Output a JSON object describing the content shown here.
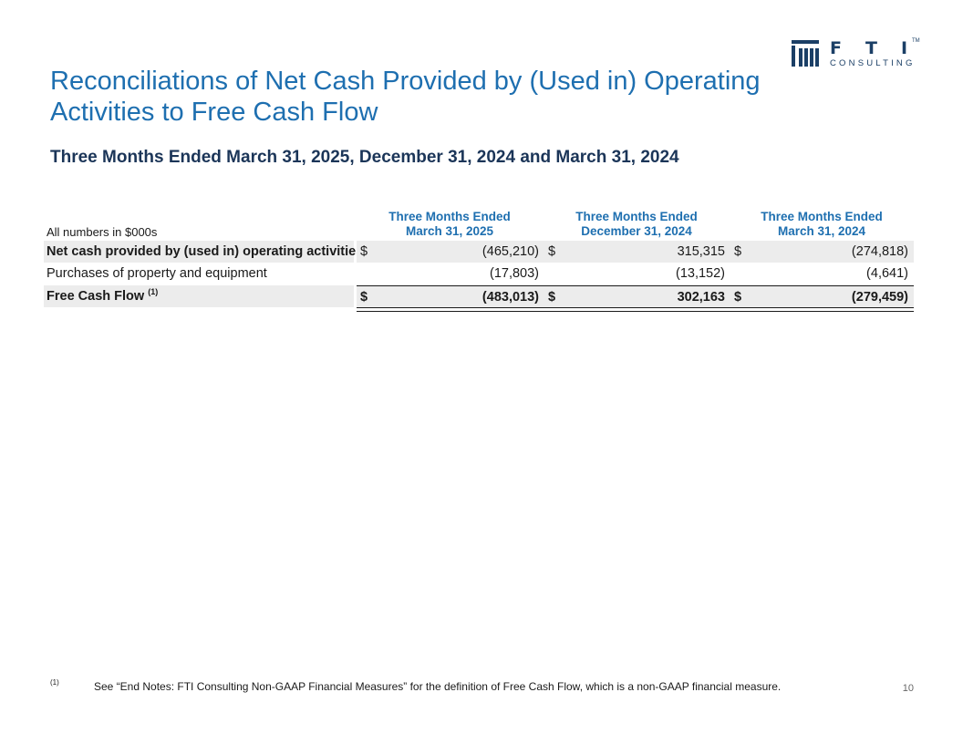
{
  "logo": {
    "letters": "FTI",
    "tm": "TM",
    "sub": "CONSULTING",
    "brand_color": "#1b3f66"
  },
  "title": "Reconciliations of Net Cash Provided by (Used in) Operating Activities to Free Cash Flow",
  "subtitle": "Three Months Ended March 31, 2025, December 31, 2024 and March 31, 2024",
  "table": {
    "units_label": "All numbers in $000s",
    "columns": [
      {
        "line1": "Three Months Ended",
        "line2": "March 31, 2025"
      },
      {
        "line1": "Three Months Ended",
        "line2": "December 31, 2024"
      },
      {
        "line1": "Three Months Ended",
        "line2": "March 31, 2024"
      }
    ],
    "rows": [
      {
        "label": "Net cash provided by (used in) operating activities",
        "values": [
          {
            "currency": "$",
            "value": "(465,210)"
          },
          {
            "currency": "$",
            "value": "315,315"
          },
          {
            "currency": "$",
            "value": "(274,818)"
          }
        ]
      },
      {
        "label": "Purchases of property and equipment",
        "values": [
          {
            "currency": "",
            "value": "(17,803)"
          },
          {
            "currency": "",
            "value": "(13,152)"
          },
          {
            "currency": "",
            "value": "(4,641)"
          }
        ]
      },
      {
        "label": "Free Cash Flow",
        "label_sup": "(1)",
        "values": [
          {
            "currency": "$",
            "value": "(483,013)"
          },
          {
            "currency": "$",
            "value": "302,163"
          },
          {
            "currency": "$",
            "value": "(279,459)"
          }
        ]
      }
    ]
  },
  "footnote": {
    "mark": "(1)",
    "text": "See “End Notes: FTI Consulting Non-GAAP Financial Measures” for the definition of Free Cash Flow, which is a non-GAAP financial measure."
  },
  "page_number": "10",
  "colors": {
    "accent": "#1e6fb0",
    "subtitle": "#1b3558",
    "row_shade": "#ececec"
  }
}
